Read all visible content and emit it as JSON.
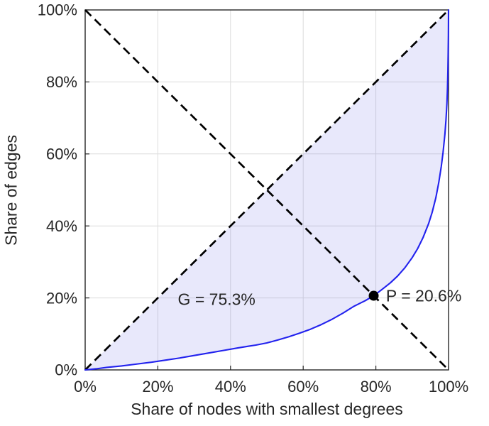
{
  "figure": {
    "background": "#ffffff"
  },
  "chart_data": {
    "type": "line",
    "title": "",
    "xlabel": "Share of nodes with smallest degrees",
    "ylabel": "Share of edges",
    "xlim": [
      0,
      100
    ],
    "ylim": [
      0,
      100
    ],
    "x_ticks": [
      0,
      20,
      40,
      60,
      80,
      100
    ],
    "y_ticks": [
      0,
      20,
      40,
      60,
      80,
      100
    ],
    "x_tick_labels": [
      "0%",
      "20%",
      "40%",
      "60%",
      "80%",
      "100%"
    ],
    "y_tick_labels": [
      "0%",
      "20%",
      "40%",
      "60%",
      "80%",
      "100%"
    ],
    "grid": true,
    "legend": "none",
    "colors": {
      "grid": "#dcdcdc",
      "axis": "#262626",
      "text": "#262626",
      "fill": "#5a5ae0",
      "curve": "#2222ee",
      "dashed": "#000000",
      "marker": "#000000"
    },
    "fill_opacity": 0.14,
    "series": [
      {
        "name": "lorenz-curve",
        "color": "#2222ee",
        "style": "solid",
        "points": [
          [
            0,
            0
          ],
          [
            3,
            0.3
          ],
          [
            6,
            0.7
          ],
          [
            10,
            1.1
          ],
          [
            14,
            1.6
          ],
          [
            18,
            2.1
          ],
          [
            22,
            2.7
          ],
          [
            26,
            3.3
          ],
          [
            30,
            4.0
          ],
          [
            34,
            4.7
          ],
          [
            38,
            5.4
          ],
          [
            42,
            6.1
          ],
          [
            45,
            6.6
          ],
          [
            47,
            6.9
          ],
          [
            50,
            7.5
          ],
          [
            53,
            8.3
          ],
          [
            56,
            9.2
          ],
          [
            59,
            10.2
          ],
          [
            62,
            11.3
          ],
          [
            65,
            12.6
          ],
          [
            68,
            14.1
          ],
          [
            71,
            15.8
          ],
          [
            74,
            17.7
          ],
          [
            77,
            19.2
          ],
          [
            79.4,
            20.6
          ],
          [
            81.5,
            22.2
          ],
          [
            84,
            24.2
          ],
          [
            86,
            26.1
          ],
          [
            88,
            28.4
          ],
          [
            90,
            31.2
          ],
          [
            91.5,
            33.7
          ],
          [
            93,
            36.8
          ],
          [
            94.5,
            40.6
          ],
          [
            95.5,
            43.8
          ],
          [
            96.5,
            47.8
          ],
          [
            97.3,
            52.0
          ],
          [
            98,
            56.5
          ],
          [
            98.5,
            60.5
          ],
          [
            99,
            65.5
          ],
          [
            99.3,
            69.5
          ],
          [
            99.55,
            74.0
          ],
          [
            99.7,
            78.0
          ],
          [
            99.82,
            83.0
          ],
          [
            99.9,
            88.0
          ],
          [
            99.96,
            93.0
          ],
          [
            100,
            100
          ]
        ]
      },
      {
        "name": "equality-diagonal",
        "color": "#000000",
        "style": "dashed",
        "points": [
          [
            0,
            0
          ],
          [
            100,
            100
          ]
        ]
      },
      {
        "name": "anti-diagonal",
        "color": "#000000",
        "style": "dashed",
        "points": [
          [
            0,
            100
          ],
          [
            100,
            0
          ]
        ]
      }
    ],
    "marker": {
      "x": 79.4,
      "y": 20.6,
      "color": "#000000"
    },
    "annotations": [
      {
        "name": "gini-annotation",
        "text": "G = 75.3%",
        "x": 25.5,
        "y": 19.6
      },
      {
        "name": "p-annotation",
        "text": "P = 20.6%",
        "x": 82.8,
        "y": 20.6
      }
    ],
    "gini_percent": 75.3,
    "p_percent": 20.6
  }
}
